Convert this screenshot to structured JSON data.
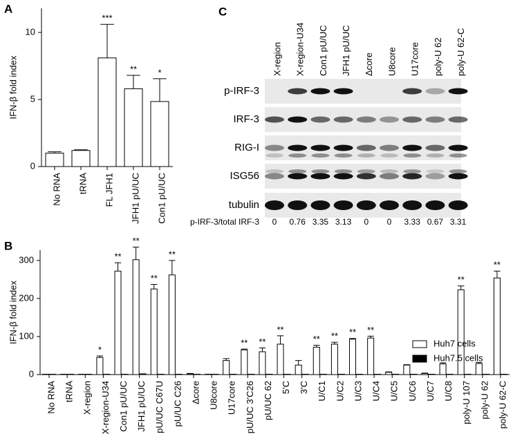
{
  "chart_data": [
    {
      "type": "bar",
      "panel": "A",
      "y_label": "IFN-β fold index",
      "categories": [
        "No RNA",
        "tRNA",
        "FL JFH1",
        "JFH1 pU/UC",
        "Con1 pU/UC"
      ],
      "series": [
        {
          "color": "#ffffff",
          "values": [
            1.0,
            1.2,
            8.1,
            5.8,
            4.85
          ],
          "errors": [
            0.1,
            0.05,
            2.5,
            1.0,
            1.7
          ],
          "annotations": [
            null,
            null,
            "***",
            "**",
            "*"
          ]
        }
      ],
      "ylim": [
        0,
        11.8
      ],
      "yticks": [
        0,
        5,
        10
      ]
    },
    {
      "type": "bar",
      "panel": "B",
      "y_label": "IFN-β fold index",
      "categories": [
        "No RNA",
        "tRNA",
        "X-region",
        "X-region-U34",
        "Con1 pU/UC",
        "JFH1 pU/UC",
        "pU/UC C67U",
        "pU/UC C26",
        "Δcore",
        "U8core",
        "U17core",
        "pU/UC 3'C26",
        "pU/UC 62",
        "5'C",
        "3'C",
        "U/C1",
        "U/C2",
        "U/C3",
        "U/C4",
        "U/C5",
        "U/C6",
        "U/C7",
        "U/C8",
        "poly-U 107",
        "poly-U 62",
        "poly-U 62-C"
      ],
      "series": [
        {
          "name": "Huh7 cells",
          "color": "#ffffff",
          "values": [
            1,
            1,
            1,
            45,
            272,
            302,
            225,
            262,
            2,
            1,
            37,
            65,
            60,
            80,
            25,
            72,
            80,
            93,
            96,
            6,
            25,
            3,
            28,
            223,
            29,
            254
          ],
          "errors": [
            null,
            null,
            null,
            4,
            22,
            33,
            12,
            38,
            1,
            null,
            5,
            2,
            10,
            22,
            12,
            5,
            5,
            2,
            5,
            1,
            1,
            1,
            3,
            10,
            3,
            18
          ],
          "annotations": [
            null,
            null,
            null,
            "*",
            "**",
            "**",
            "**",
            "**",
            null,
            null,
            null,
            "**",
            "**",
            "**",
            null,
            "**",
            "**",
            "**",
            "**",
            null,
            null,
            null,
            null,
            "**",
            null,
            "**"
          ]
        },
        {
          "name": "Huh7.5 cells",
          "color": "#000000",
          "values": [
            1,
            1,
            1,
            1,
            1,
            2,
            1,
            1,
            1,
            1,
            1,
            1,
            1,
            1,
            1,
            1,
            1,
            1,
            1,
            1,
            1,
            1,
            1,
            1,
            1,
            1
          ]
        }
      ],
      "ylim": [
        0,
        327
      ],
      "yticks": [
        0,
        100,
        200,
        300
      ],
      "legend": "right"
    }
  ],
  "blot": {
    "panel": "C",
    "lanes": [
      "X-region",
      "X-region-U34",
      "Con1 pU/UC",
      "JFH1 pU/UC",
      "Δcore",
      "U8core",
      "U17core",
      "poly-U 62",
      "poly-U 62-C"
    ],
    "rows": [
      "p-IRF-3",
      "IRF-3",
      "RIG-I",
      "ISG56",
      "tubulin"
    ],
    "ratio_label": "p-IRF-3/total IRF-3",
    "ratios": [
      0,
      0.76,
      3.35,
      3.13,
      0,
      0,
      3.33,
      0.67,
      3.31
    ]
  }
}
